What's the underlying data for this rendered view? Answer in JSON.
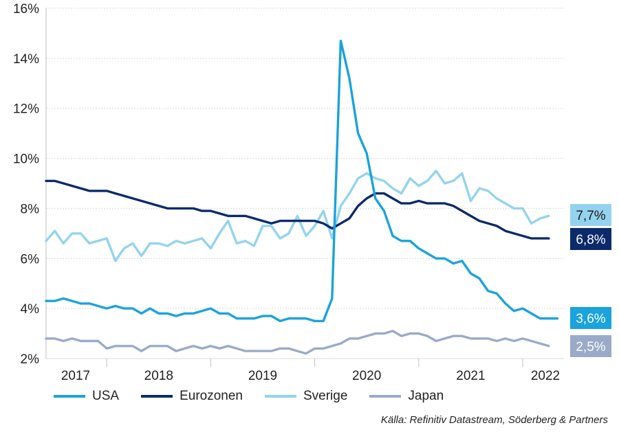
{
  "chart_data": {
    "type": "line",
    "title": "",
    "xlabel": "",
    "ylabel": "",
    "ylim": [
      2,
      16
    ],
    "yticks": [
      "2%",
      "4%",
      "6%",
      "8%",
      "10%",
      "12%",
      "14%",
      "16%"
    ],
    "year_labels": [
      "2017",
      "2018",
      "2019",
      "2020",
      "2021",
      "2022"
    ],
    "grid": true,
    "legend_position": "bottom",
    "series": [
      {
        "name": "USA",
        "color": "#1aa3dc",
        "end_label": "3,6%",
        "values": [
          4.3,
          4.3,
          4.4,
          4.3,
          4.2,
          4.2,
          4.1,
          4.0,
          4.1,
          4.0,
          4.0,
          3.8,
          4.0,
          3.8,
          3.8,
          3.7,
          3.8,
          3.8,
          3.9,
          4.0,
          3.8,
          3.8,
          3.6,
          3.6,
          3.6,
          3.7,
          3.7,
          3.5,
          3.6,
          3.6,
          3.6,
          3.5,
          3.5,
          4.4,
          14.7,
          13.2,
          11.0,
          10.2,
          8.4,
          7.9,
          6.9,
          6.7,
          6.7,
          6.4,
          6.2,
          6.0,
          6.0,
          5.8,
          5.9,
          5.4,
          5.2,
          4.7,
          4.6,
          4.2,
          3.9,
          4.0,
          3.8,
          3.6,
          3.6,
          3.6
        ]
      },
      {
        "name": "Eurozonen",
        "color": "#0b2a6b",
        "end_label": "6,8%",
        "values": [
          9.1,
          9.1,
          9.0,
          8.9,
          8.8,
          8.7,
          8.7,
          8.7,
          8.6,
          8.5,
          8.4,
          8.3,
          8.2,
          8.1,
          8.0,
          8.0,
          8.0,
          8.0,
          7.9,
          7.9,
          7.8,
          7.7,
          7.7,
          7.7,
          7.6,
          7.5,
          7.4,
          7.5,
          7.5,
          7.5,
          7.5,
          7.5,
          7.4,
          7.2,
          7.4,
          7.6,
          8.1,
          8.4,
          8.6,
          8.6,
          8.4,
          8.2,
          8.2,
          8.3,
          8.2,
          8.2,
          8.2,
          8.1,
          7.9,
          7.7,
          7.5,
          7.4,
          7.3,
          7.1,
          7.0,
          6.9,
          6.8,
          6.8,
          6.8
        ]
      },
      {
        "name": "Sverige",
        "color": "#94d3ef",
        "end_label": "7,7%",
        "values": [
          6.7,
          7.1,
          6.6,
          7.0,
          7.0,
          6.6,
          6.7,
          6.8,
          5.9,
          6.4,
          6.6,
          6.1,
          6.6,
          6.6,
          6.5,
          6.7,
          6.6,
          6.7,
          6.8,
          6.4,
          7.0,
          7.5,
          6.6,
          6.7,
          6.5,
          7.3,
          7.3,
          6.8,
          7.0,
          7.7,
          6.9,
          7.3,
          7.9,
          6.8,
          8.1,
          8.6,
          9.2,
          9.4,
          9.2,
          9.1,
          8.8,
          8.6,
          9.2,
          8.9,
          9.1,
          9.5,
          9.0,
          9.1,
          9.4,
          8.3,
          8.8,
          8.7,
          8.4,
          8.2,
          8.0,
          8.0,
          7.4,
          7.6,
          7.7
        ]
      },
      {
        "name": "Japan",
        "color": "#9aaac8",
        "end_label": "2,5%",
        "values": [
          2.8,
          2.8,
          2.7,
          2.8,
          2.7,
          2.7,
          2.7,
          2.4,
          2.5,
          2.5,
          2.5,
          2.3,
          2.5,
          2.5,
          2.5,
          2.3,
          2.4,
          2.5,
          2.4,
          2.5,
          2.4,
          2.5,
          2.4,
          2.3,
          2.3,
          2.3,
          2.3,
          2.4,
          2.4,
          2.3,
          2.2,
          2.4,
          2.4,
          2.5,
          2.6,
          2.8,
          2.8,
          2.9,
          3.0,
          3.0,
          3.1,
          2.9,
          3.0,
          3.0,
          2.9,
          2.7,
          2.8,
          2.9,
          2.9,
          2.8,
          2.8,
          2.8,
          2.7,
          2.8,
          2.7,
          2.8,
          2.7,
          2.6,
          2.5
        ]
      }
    ],
    "source": "Källa: Refinitiv Datastream, Söderberg & Partners"
  }
}
